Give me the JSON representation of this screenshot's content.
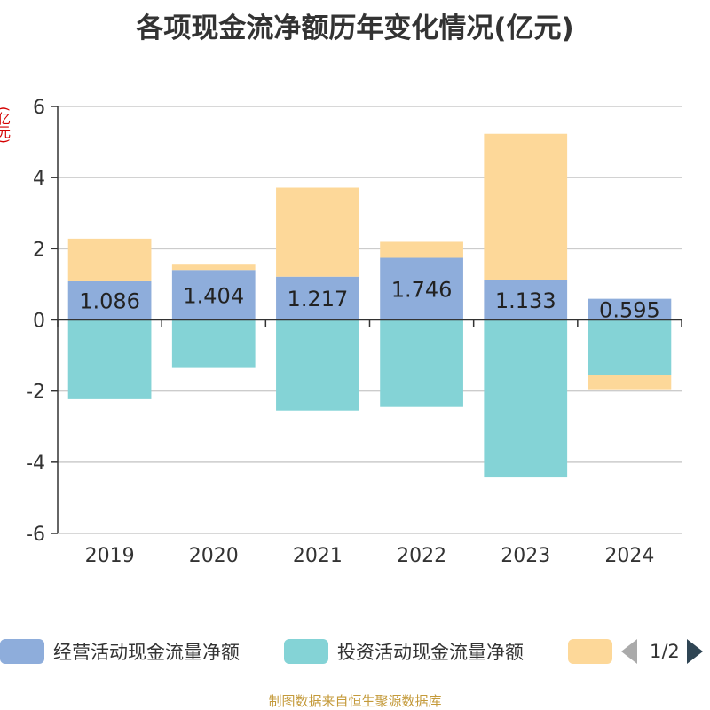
{
  "title": "各项现金流净额历年变化情况(亿元)",
  "unit_label": "(亿元)",
  "footer": "制图数据来自恒生聚源数据库",
  "legend": {
    "items": [
      {
        "label": "经营活动现金流量净额",
        "color": "#8eaddb"
      },
      {
        "label": "投资活动现金流量净额",
        "color": "#84d3d6"
      },
      {
        "label": "",
        "color": "#fdd899"
      }
    ],
    "page": "1/2"
  },
  "chart_data": {
    "type": "bar",
    "stacked": true,
    "categories": [
      "2019",
      "2020",
      "2021",
      "2022",
      "2023",
      "2024"
    ],
    "ylim": [
      -6,
      6
    ],
    "yticks": [
      -6,
      -4,
      -2,
      0,
      2,
      4,
      6
    ],
    "series": [
      {
        "name": "经营活动现金流量净额",
        "color": "#8eaddb",
        "values": [
          1.086,
          1.404,
          1.217,
          1.746,
          1.133,
          0.595
        ],
        "labels": [
          "1.086",
          "1.404",
          "1.217",
          "1.746",
          "1.133",
          "0.595"
        ]
      },
      {
        "name": "投资活动现金流量净额",
        "color": "#84d3d6",
        "values": [
          -2.23,
          -1.35,
          -2.55,
          -2.45,
          -4.43,
          -1.55
        ]
      },
      {
        "color": "#fdd899",
        "values": [
          1.2,
          0.15,
          2.5,
          0.45,
          4.1,
          -0.4
        ]
      }
    ],
    "grid": true
  }
}
